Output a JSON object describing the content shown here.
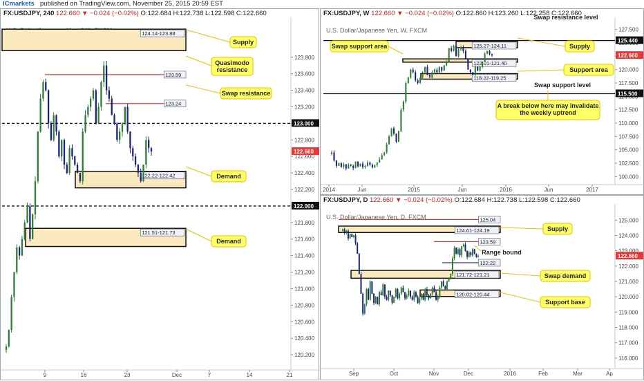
{
  "header": {
    "publisher": "ICmarkets",
    "published_text": "published on TradingView.com, November 25, 2015 20:59 EST"
  },
  "colors": {
    "up": "#2e7d32",
    "down": "#1a237e",
    "resistance": "#e53935",
    "zone_fill": "#fbe9c0",
    "zone_border": "#111111",
    "callout_fill": "#ffff66",
    "callout_border": "#e6c200",
    "current_price_bg": "#e53935"
  },
  "panes": [
    {
      "id": "h4",
      "header": {
        "symbol": "FX:USDJPY, 240",
        "last": "122.660",
        "change": "−0.024 (−0.02%)",
        "open": "O:122.684",
        "high": "H:122.738",
        "low": "L:122.598",
        "close": "C:122.660"
      },
      "subtitle": "U.S. Dollar/Japanese Yen, 240, FXCM",
      "current_price": "122.660",
      "annotations": {
        "supply": "Supply",
        "qm": "Quasimodo resistance",
        "swap_res": "Swap resistance",
        "demand1": "Demand",
        "demand2": "Demand",
        "zone_supply": "124.14-123.88",
        "zone_qm": "123.59",
        "zone_swap": "123.24",
        "zone_d1": "122.22-122.42",
        "zone_d2": "121.51-121.73"
      },
      "chart_data": {
        "type": "candlestick",
        "title": "U.S. Dollar/Japanese Yen, 240, FXCM",
        "ylim": [
          120.05,
          124.2
        ],
        "yticks": [
          "120.200",
          "120.400",
          "120.600",
          "120.800",
          "121.000",
          "121.200",
          "121.400",
          "121.600",
          "121.800",
          "122.000",
          "122.200",
          "122.400",
          "122.600",
          "122.800",
          "123.000",
          "123.200",
          "123.400",
          "123.600",
          "123.800"
        ],
        "xticks": [
          "9",
          "16",
          "23",
          "Dec",
          "7",
          "14",
          "21"
        ],
        "levels": [
          {
            "price": 123.0,
            "style": "dashed",
            "label": "123.000"
          },
          {
            "price": 122.0,
            "style": "dashed",
            "label": "122.000"
          },
          {
            "price": 123.59,
            "style": "resistance",
            "label": "123.59"
          },
          {
            "price": 123.24,
            "style": "resistance",
            "label": "123.24"
          }
        ],
        "zones": [
          {
            "low": 123.88,
            "high": 124.14,
            "label": "124.14-123.88"
          },
          {
            "low": 122.22,
            "high": 122.42,
            "label": "122.22-122.42"
          },
          {
            "low": 121.51,
            "high": 121.73,
            "label": "121.51-121.73"
          }
        ],
        "close_path": [
          120.3,
          120.5,
          120.9,
          121.2,
          121.5,
          121.4,
          121.6,
          121.8,
          122.0,
          121.6,
          121.9,
          122.3,
          122.9,
          123.3,
          123.5,
          123.4,
          123.0,
          122.8,
          123.1,
          122.9,
          122.6,
          122.8,
          122.5,
          122.4,
          122.7,
          122.6,
          122.5,
          122.4,
          122.3,
          122.9,
          123.1,
          123.2,
          123.3,
          123.4,
          123.0,
          123.2,
          123.5,
          123.7,
          123.4,
          123.3,
          123.1,
          123.0,
          122.8,
          122.9,
          123.0,
          123.2,
          122.9,
          122.7,
          122.6,
          122.5,
          122.4,
          122.3,
          122.5,
          122.8,
          122.7,
          122.66
        ]
      }
    },
    {
      "id": "weekly",
      "header": {
        "symbol": "FX:USDJPY, W",
        "last": "122.660",
        "change": "−0.024 (−0.02%)",
        "open": "O:122.860",
        "high": "H:123.260",
        "low": "L:122.258",
        "close": "C:122.660"
      },
      "subtitle": "U.S. Dollar/Japanese Yen, W, FXCM",
      "current_price": "122.660",
      "annotations": {
        "swap_res_level": "Swap resistance level",
        "swap_sup_area": "Swap support area",
        "supply": "Supply",
        "support_area": "Support area",
        "swap_sup_level": "Swap support level",
        "note": "A break below here may invalidate the weekly uptrend",
        "zone_supply": "125.27-124.11",
        "zone_swap": "122.01-121.40",
        "zone_support": "118.22-119.25",
        "level_res": "125.440",
        "level_sup": "115.500"
      },
      "chart_data": {
        "type": "candlestick",
        "title": "U.S. Dollar/Japanese Yen, W, FXCM",
        "ylim": [
          99.0,
          128.5
        ],
        "yticks": [
          "100.000",
          "102.500",
          "105.000",
          "107.500",
          "110.000",
          "112.500",
          "115.000",
          "117.500",
          "120.000",
          "122.500",
          "125.000",
          "127.500"
        ],
        "xticks": [
          "2014",
          "Jun",
          "2015",
          "Jun",
          "2016",
          "Jun",
          "2017"
        ],
        "levels": [
          {
            "price": 125.44,
            "style": "solid",
            "label": "125.440"
          },
          {
            "price": 115.5,
            "style": "solid",
            "label": "115.500"
          }
        ],
        "zones": [
          {
            "low": 124.11,
            "high": 125.27,
            "label": "125.27-124.11"
          },
          {
            "low": 121.4,
            "high": 122.01,
            "label": "122.01-121.40"
          },
          {
            "low": 118.22,
            "high": 119.25,
            "label": "118.22-119.25"
          }
        ],
        "close_path": [
          104.5,
          103.0,
          102.0,
          102.5,
          101.8,
          102.3,
          101.5,
          102.2,
          102.0,
          101.6,
          102.8,
          101.9,
          102.4,
          101.8,
          102.0,
          102.6,
          102.2,
          101.7,
          102.1,
          102.6,
          103.2,
          104.0,
          104.5,
          106.0,
          107.5,
          109.0,
          108.0,
          106.5,
          108.5,
          112.5,
          114.0,
          117.5,
          118.5,
          120.0,
          119.5,
          118.0,
          117.5,
          118.5,
          119.5,
          120.5,
          119.0,
          118.5,
          119.5,
          120.0,
          119.5,
          120.5,
          119.8,
          120.8,
          121.5,
          124.0,
          123.5,
          124.5,
          122.5,
          123.8,
          124.2,
          123.5,
          122.0,
          120.0,
          119.5,
          119.0,
          120.5,
          119.8,
          120.5,
          121.5,
          123.0,
          123.5,
          122.9,
          122.66
        ]
      }
    },
    {
      "id": "daily",
      "header": {
        "symbol": "FX:USDJPY, D",
        "last": "122.660",
        "change": "−0.024 (−0.02%)",
        "open": "O:122.684",
        "high": "H:122.738",
        "low": "L:122.598",
        "close": "C:122.660"
      },
      "subtitle": "U.S. Dollar/Japanese Yen, D, FXCM",
      "current_price": "122.660",
      "annotations": {
        "supply": "Supply",
        "range": "Range bound",
        "swap_demand": "Swap demand",
        "support_base": "Support base",
        "zone_top": "125.04",
        "zone_supply": "124.61-124.19",
        "zone_range_top": "123.59",
        "zone_range_bot": "122.22",
        "zone_swap": "121.72-121.21",
        "zone_base": "120.02-120.44"
      },
      "chart_data": {
        "type": "candlestick",
        "title": "U.S. Dollar/Japanese Yen, D, FXCM",
        "ylim": [
          115.5,
          125.6
        ],
        "yticks": [
          "116.000",
          "117.000",
          "118.000",
          "119.000",
          "120.000",
          "121.000",
          "122.000",
          "123.000",
          "124.000",
          "125.000"
        ],
        "xticks": [
          "Sep",
          "Oct",
          "Nov",
          "Dec",
          "2016",
          "Feb",
          "Mar",
          "Ap"
        ],
        "levels": [
          {
            "price": 125.04,
            "style": "resistance",
            "label": "125.04"
          },
          {
            "price": 123.59,
            "style": "resistance",
            "label": "123.59"
          },
          {
            "price": 122.22,
            "style": "range",
            "label": "122.22"
          }
        ],
        "zones": [
          {
            "low": 124.19,
            "high": 124.61,
            "label": "124.61-124.19"
          },
          {
            "low": 121.21,
            "high": 121.72,
            "label": "121.72-121.21"
          },
          {
            "low": 120.02,
            "high": 120.44,
            "label": "120.02-120.44"
          }
        ],
        "close_path": [
          124.4,
          124.2,
          124.3,
          123.8,
          124.1,
          123.9,
          124.0,
          123.5,
          122.8,
          121.5,
          120.2,
          118.9,
          119.5,
          120.5,
          119.8,
          121.0,
          120.2,
          119.6,
          120.0,
          119.5,
          120.3,
          120.1,
          120.8,
          120.0,
          119.8,
          120.4,
          120.1,
          119.6,
          120.0,
          120.5,
          119.9,
          120.2,
          120.6,
          120.3,
          119.9,
          120.1,
          120.4,
          120.0,
          119.8,
          120.3,
          120.0,
          119.6,
          119.9,
          120.2,
          119.8,
          120.5,
          120.1,
          119.9,
          120.2,
          120.6,
          120.3,
          119.8,
          120.0,
          120.6,
          121.0,
          120.7,
          120.5,
          121.0,
          121.2,
          121.5,
          122.5,
          123.2,
          122.8,
          123.1,
          122.7,
          123.3,
          123.4,
          123.0,
          122.6,
          122.9,
          122.7,
          123.1,
          122.8,
          122.6,
          122.66
        ]
      }
    }
  ]
}
